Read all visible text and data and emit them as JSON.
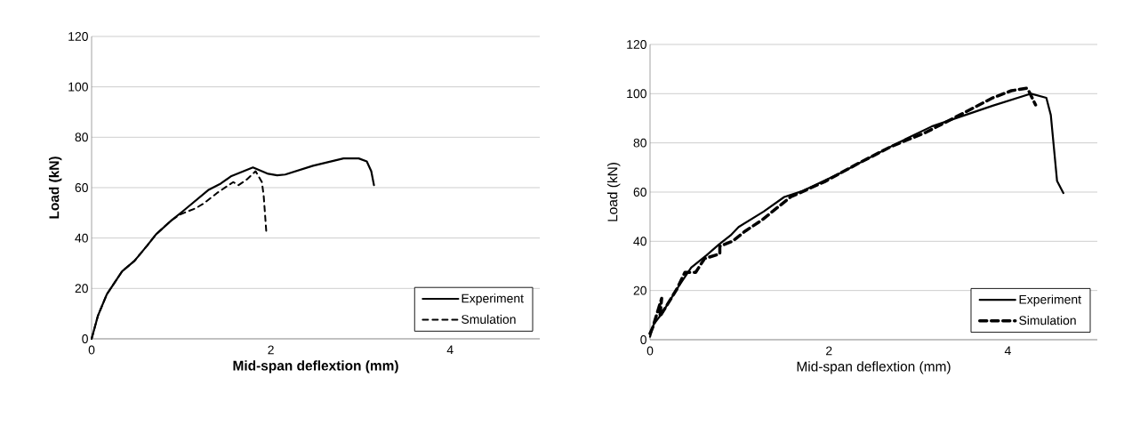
{
  "chart_data": [
    {
      "type": "line",
      "xlabel": "Mid-span deflextion (mm)",
      "ylabel": "Load (kN)",
      "xlim": [
        0,
        5
      ],
      "ylim": [
        0,
        120
      ],
      "xticks": [
        0,
        2,
        4
      ],
      "yticks": [
        0,
        20,
        40,
        60,
        80,
        100,
        120
      ],
      "grid": "y",
      "legend": "bottom right",
      "series": [
        {
          "name": "Experiment",
          "color": "#000000",
          "line_style": "solid",
          "x": [
            0,
            0.07,
            0.17,
            0.34,
            0.48,
            0.62,
            0.72,
            0.89,
            1.03,
            1.3,
            1.44,
            1.56,
            1.8,
            1.97,
            2.07,
            2.16,
            2.47,
            2.81,
            2.98,
            3.07,
            3.12,
            3.15
          ],
          "values": [
            0,
            9.1,
            17.7,
            26.8,
            31,
            37,
            41.5,
            47,
            51,
            59,
            61.6,
            64.6,
            68,
            65.5,
            64.9,
            65.2,
            68.7,
            71.6,
            71.6,
            70.4,
            66.5,
            61
          ]
        },
        {
          "name": "Smulation",
          "color": "#000000",
          "line_style": "dashed",
          "x": [
            0,
            0.07,
            0.17,
            0.34,
            0.48,
            0.62,
            0.72,
            0.89,
            0.99,
            1.16,
            1.25,
            1.4,
            1.58,
            1.64,
            1.73,
            1.83,
            1.9,
            1.92,
            1.95
          ],
          "values": [
            0,
            9.1,
            17.7,
            26.8,
            31,
            37,
            41.5,
            47,
            49.4,
            51.8,
            53.7,
            57.9,
            62.2,
            61,
            63.2,
            66.5,
            62.2,
            56.7,
            42
          ]
        }
      ]
    },
    {
      "type": "line",
      "xlabel": "Mid-span deflextion (mm)",
      "ylabel": "Load (kN)",
      "xlim": [
        0,
        5
      ],
      "ylim": [
        0,
        120
      ],
      "xticks": [
        0,
        2,
        4
      ],
      "yticks": [
        0,
        20,
        40,
        60,
        80,
        100,
        120
      ],
      "grid": "y",
      "legend": "bottom right",
      "series": [
        {
          "name": "Experiment",
          "color": "#000000",
          "line_style": "solid",
          "x": [
            0,
            0.04,
            0.13,
            0.3,
            0.46,
            0.63,
            0.77,
            0.9,
            0.99,
            1.27,
            1.5,
            1.71,
            2.12,
            2.77,
            3.15,
            3.83,
            4.26,
            4.43,
            4.48,
            4.55,
            4.62
          ],
          "values": [
            1.2,
            6.2,
            10.5,
            20.6,
            29.3,
            34.3,
            38.7,
            42.4,
            45.8,
            52.1,
            58,
            60.5,
            67.6,
            80,
            86.7,
            95.1,
            100,
            98.3,
            91.3,
            64.5,
            59.6
          ]
        },
        {
          "name": "Simulation",
          "color": "#000000",
          "line_style": "dashed",
          "x": [
            0,
            0.03,
            0.13,
            0.11,
            0.3,
            0.39,
            0.51,
            0.61,
            0.78,
            0.78,
            0.92,
            1.07,
            1.25,
            1.42,
            1.57,
            1.95,
            2.33,
            2.7,
            3.08,
            3.46,
            3.83,
            4.04,
            4.21,
            4.23,
            4.31
          ],
          "values": [
            2.5,
            5,
            16.8,
            9.4,
            20.6,
            27.4,
            27.4,
            33,
            34.9,
            38,
            40,
            44.3,
            48.6,
            53.6,
            58,
            64.2,
            71.7,
            78.6,
            84.2,
            91.3,
            98.3,
            101.2,
            102.2,
            101.4,
            95.4
          ]
        }
      ]
    }
  ]
}
